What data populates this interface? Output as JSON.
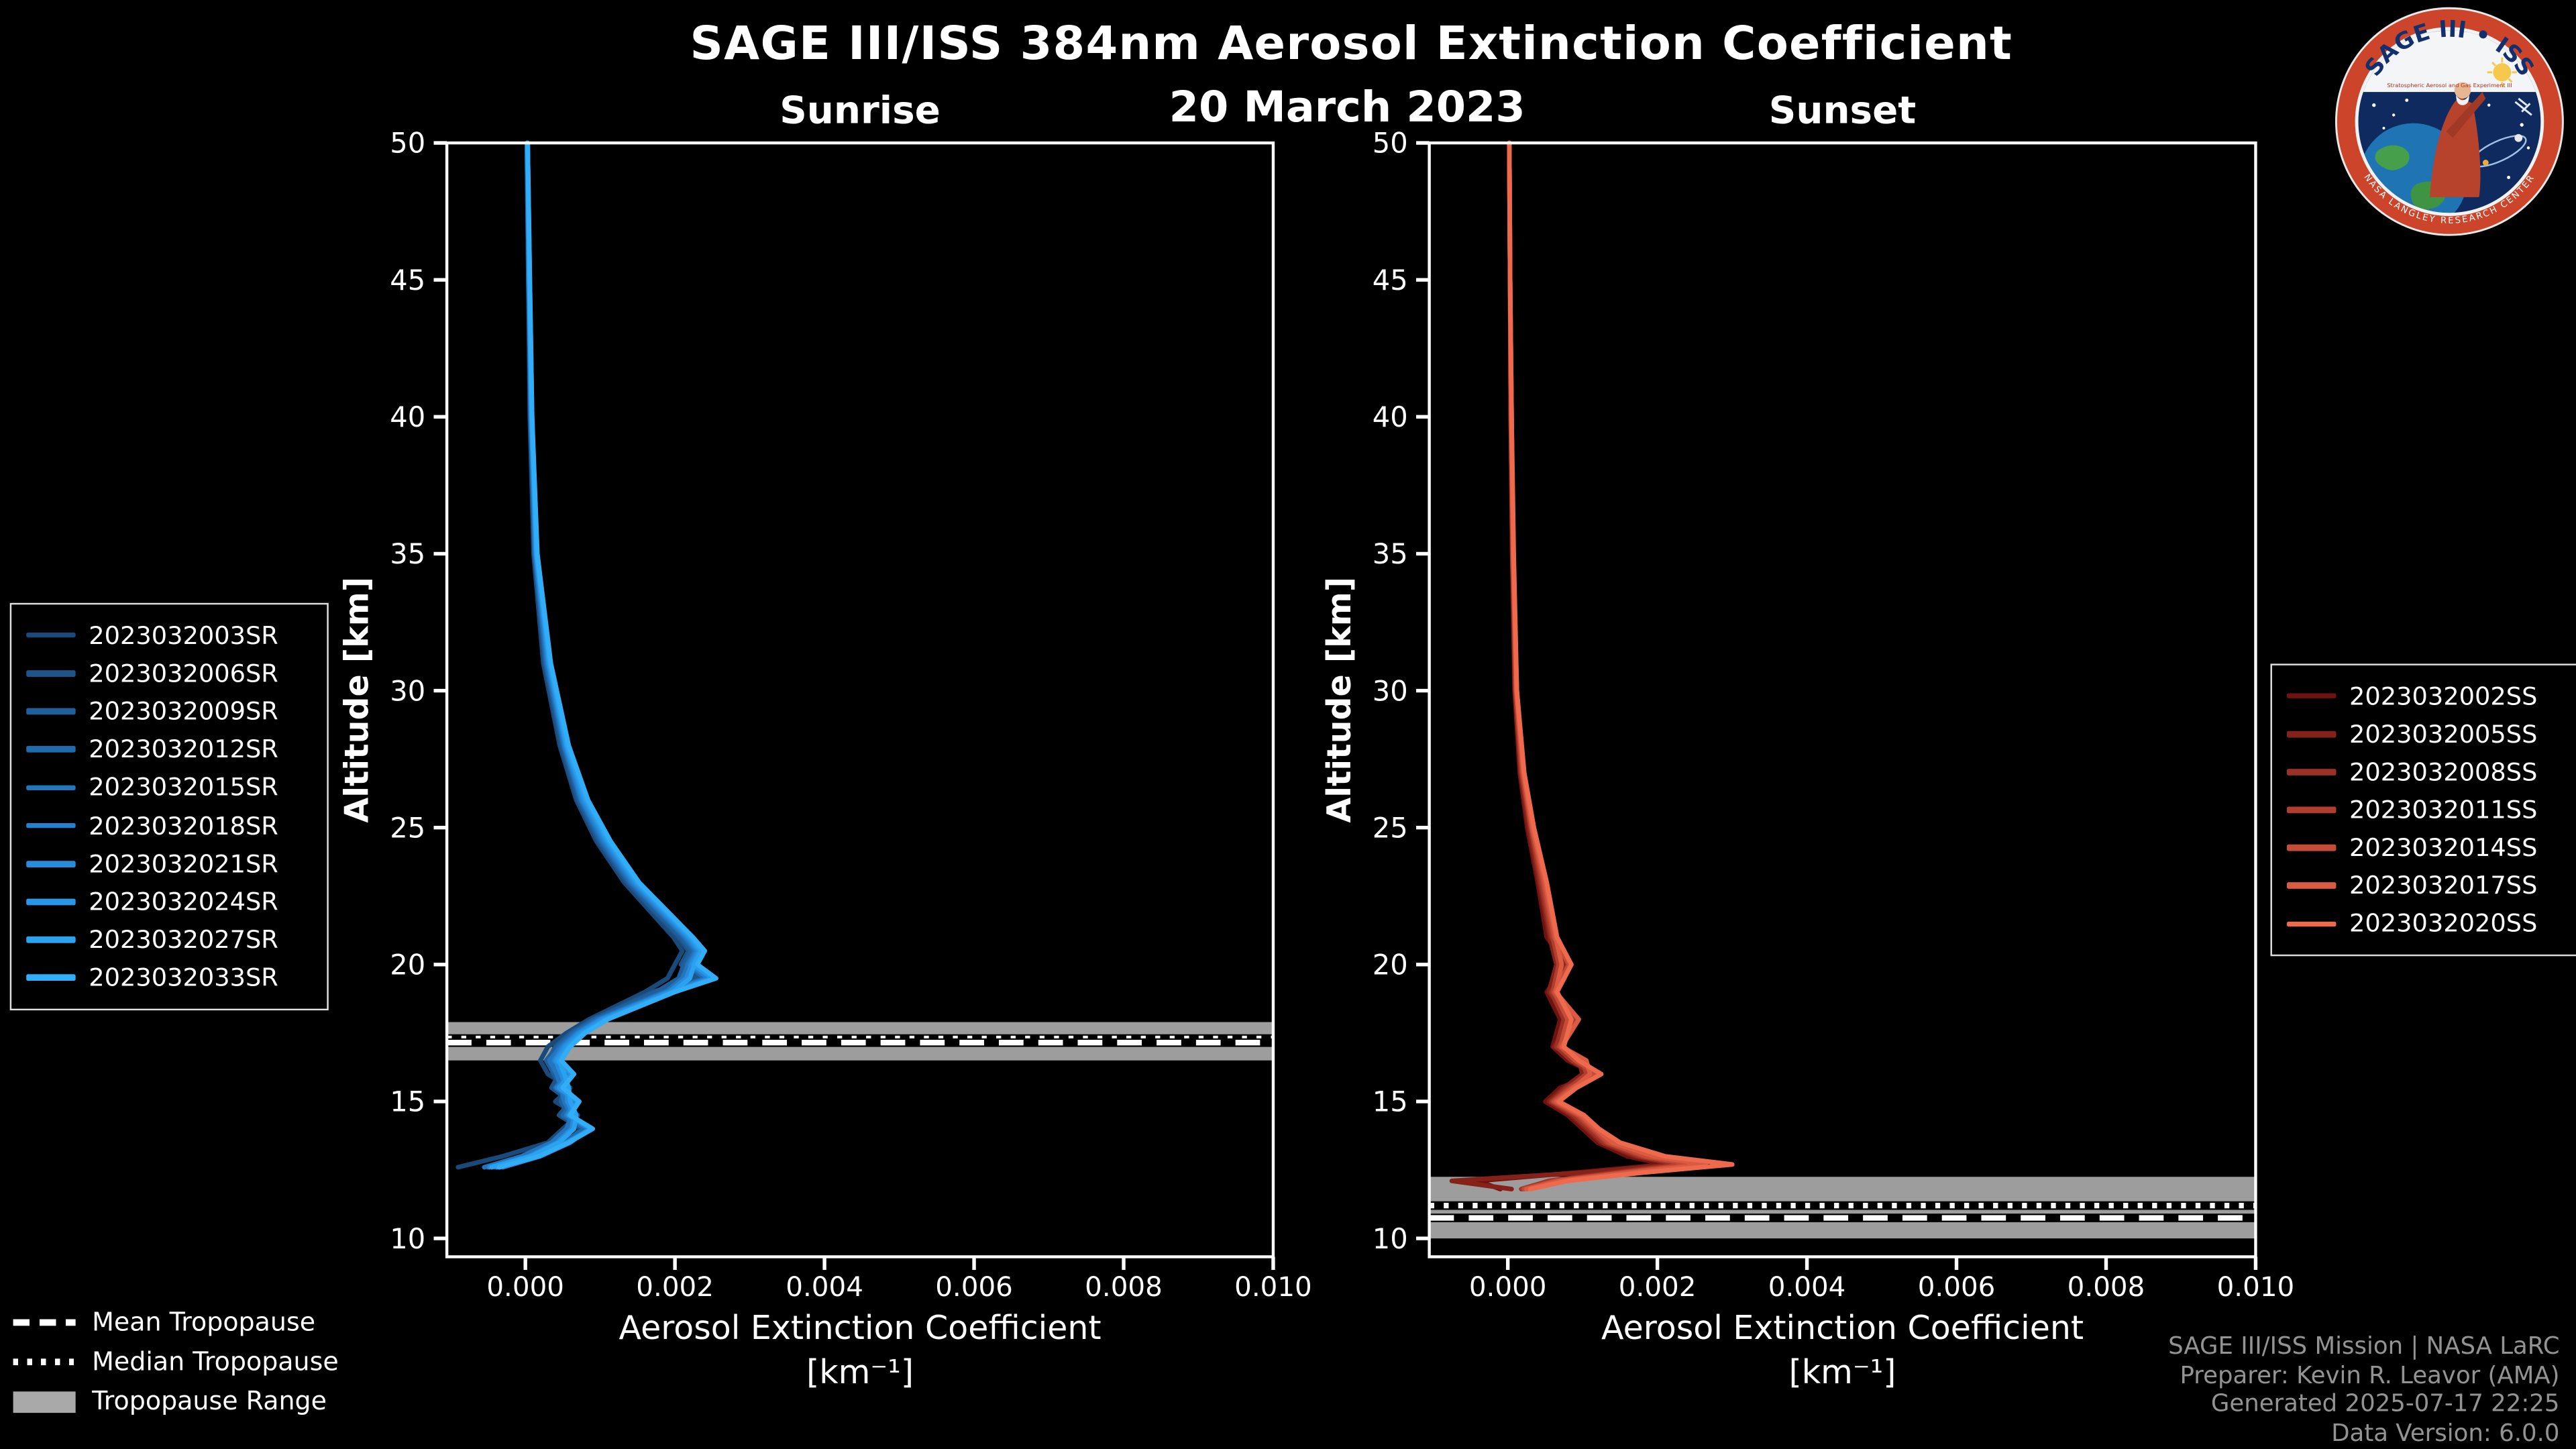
{
  "title": "SAGE III/ISS 384nm Aerosol Extinction Coefficient",
  "date": "20 March 2023",
  "colors": {
    "background": "#000000",
    "text": "#ffffff",
    "muted_text": "#939393",
    "frame": "#ffffff",
    "tropopause_band": "#b9b9b9",
    "sunrise_accent": "#31aef7",
    "sunset_accent": "#ef6a4c"
  },
  "logo": {
    "title": "SAGE III • ISS",
    "subtitle": "Stratospheric Aerosol and Gas Experiment III",
    "ring_text": "NASA LANGLEY RESEARCH CENTER"
  },
  "tropopause_legend": [
    {
      "style": "dashed",
      "label": "Mean Tropopause"
    },
    {
      "style": "dotted",
      "label": "Median Tropopause"
    },
    {
      "style": "band",
      "label": "Tropopause Range"
    }
  ],
  "credits": [
    "SAGE III/ISS Mission | NASA LaRC",
    "Preparer: Kevin R. Leavor (AMA)",
    "Generated 2025-07-17 22:25",
    "Data Version: 6.0.0"
  ],
  "chart_data": [
    {
      "type": "line",
      "title": "Sunrise",
      "xlabel": "Aerosol Extinction Coefficient",
      "xlabel_units": "[km⁻¹]",
      "ylabel": "Altitude [km]",
      "xlim": [
        -0.00105,
        0.01
      ],
      "ylim": [
        9.33,
        50
      ],
      "x_tick_values": [
        0,
        0.002,
        0.004,
        0.006,
        0.008,
        0.01
      ],
      "x_ticks": [
        "0.000",
        "0.002",
        "0.004",
        "0.006",
        "0.008",
        "0.010"
      ],
      "y_tick_values": [
        10,
        15,
        20,
        25,
        30,
        35,
        40,
        45,
        50
      ],
      "y_ticks": [
        "10",
        "15",
        "20",
        "25",
        "30",
        "35",
        "40",
        "45",
        "50"
      ],
      "grid": false,
      "legend_position": "outside-left",
      "tropopause": {
        "mean": 17.15,
        "median": 17.3,
        "range": [
          16.5,
          17.9
        ]
      },
      "altitudes": [
        50,
        45,
        40,
        35,
        31,
        28,
        26,
        24.5,
        23,
        22,
        21,
        20.5,
        20,
        19.5,
        19,
        18,
        17.5,
        17,
        16.5,
        16,
        15.5,
        15,
        14.5,
        14,
        13.5,
        13,
        12.6
      ],
      "series": [
        {
          "name": "2023032003SR",
          "color": "#1a4a7a",
          "values": [
            2e-05,
            4e-05,
            6e-05,
            0.00011,
            0.00024,
            0.00046,
            0.00068,
            0.00095,
            0.00132,
            0.00165,
            0.00198,
            0.0021,
            0.002,
            0.0019,
            0.0016,
            0.00085,
            0.00055,
            0.0003,
            0.0002,
            0.0003,
            0.0006,
            0.0004,
            0.0007,
            0.0005,
            0.0003,
            -0.0003,
            -0.0009
          ]
        },
        {
          "name": "2023032006SR",
          "color": "#1d558b",
          "values": [
            2e-05,
            4e-05,
            7e-05,
            0.00012,
            0.00026,
            0.00048,
            0.0007,
            0.00098,
            0.00136,
            0.0017,
            0.00205,
            0.00218,
            0.00208,
            0.0023,
            0.0017,
            0.0009,
            0.0006,
            0.0004,
            0.0003,
            0.00045,
            0.00035,
            0.0006,
            0.00045,
            0.00075,
            0.00055,
            0.00015,
            -0.00035
          ]
        },
        {
          "name": "2023032009SR",
          "color": "#1f609c",
          "values": [
            2e-05,
            4e-05,
            7e-05,
            0.00012,
            0.00027,
            0.0005,
            0.00072,
            0.001,
            0.00138,
            0.00172,
            0.00208,
            0.00222,
            0.00212,
            0.00205,
            0.00175,
            0.00092,
            0.00062,
            0.00042,
            0.00028,
            0.00038,
            0.00052,
            0.00048,
            0.00058,
            0.0006,
            0.0004,
            0.0,
            -0.0005
          ]
        },
        {
          "name": "2023032012SR",
          "color": "#216bad",
          "values": [
            2e-05,
            5e-05,
            7e-05,
            0.00013,
            0.00028,
            0.00051,
            0.00074,
            0.00102,
            0.0014,
            0.00176,
            0.00212,
            0.00226,
            0.00216,
            0.0024,
            0.00185,
            0.00095,
            0.00065,
            0.00045,
            0.00035,
            0.00055,
            0.0004,
            0.00065,
            0.0005,
            0.0008,
            0.0005,
            0.0001,
            -0.0004
          ]
        },
        {
          "name": "2023032015SR",
          "color": "#2376be",
          "values": [
            2e-05,
            5e-05,
            8e-05,
            0.00013,
            0.00029,
            0.00052,
            0.00075,
            0.00104,
            0.00142,
            0.00178,
            0.00214,
            0.00228,
            0.00218,
            0.0021,
            0.00188,
            0.00098,
            0.00068,
            0.00048,
            0.00032,
            0.00042,
            0.00048,
            0.00052,
            0.00062,
            0.00055,
            0.00035,
            -5e-05,
            -0.00055
          ]
        },
        {
          "name": "2023032018SR",
          "color": "#2581cf",
          "values": [
            3e-05,
            5e-05,
            8e-05,
            0.00014,
            0.0003,
            0.00053,
            0.00076,
            0.00106,
            0.00144,
            0.0018,
            0.00216,
            0.0023,
            0.0022,
            0.00245,
            0.0019,
            0.001,
            0.0007,
            0.0005,
            0.00038,
            0.0006,
            0.00042,
            0.00068,
            0.00055,
            0.00085,
            0.0006,
            0.0002,
            -0.0003
          ]
        },
        {
          "name": "2023032021SR",
          "color": "#278cdb",
          "values": [
            3e-05,
            5e-05,
            8e-05,
            0.00014,
            0.00031,
            0.00054,
            0.00078,
            0.00108,
            0.00146,
            0.00182,
            0.00218,
            0.00232,
            0.00222,
            0.00215,
            0.00192,
            0.00102,
            0.00072,
            0.00052,
            0.0004,
            0.00048,
            0.00055,
            0.00056,
            0.00065,
            0.00062,
            0.00042,
            5e-05,
            -0.00048
          ]
        },
        {
          "name": "2023032024SR",
          "color": "#2997e7",
          "values": [
            3e-05,
            5e-05,
            8e-05,
            0.00015,
            0.00032,
            0.00055,
            0.0008,
            0.0011,
            0.00148,
            0.00184,
            0.0022,
            0.00234,
            0.00224,
            0.0025,
            0.00195,
            0.00105,
            0.00075,
            0.00055,
            0.00042,
            0.00062,
            0.00045,
            0.0007,
            0.00058,
            0.00088,
            0.00055,
            0.00015,
            -0.00038
          ]
        },
        {
          "name": "2023032027SR",
          "color": "#2ba2f0",
          "values": [
            3e-05,
            6e-05,
            9e-05,
            0.00015,
            0.00033,
            0.00056,
            0.00082,
            0.00112,
            0.0015,
            0.00186,
            0.00222,
            0.00236,
            0.00226,
            0.0022,
            0.00198,
            0.00108,
            0.00078,
            0.00058,
            0.00045,
            0.00052,
            0.00058,
            0.0006,
            0.00068,
            0.00065,
            0.00045,
            8e-05,
            -0.00045
          ]
        },
        {
          "name": "2023032033SR",
          "color": "#31aef7",
          "values": [
            3e-05,
            6e-05,
            9e-05,
            0.00016,
            0.00034,
            0.00058,
            0.00084,
            0.00114,
            0.00152,
            0.00188,
            0.00224,
            0.0024,
            0.0023,
            0.00255,
            0.002,
            0.0011,
            0.0008,
            0.0006,
            0.00048,
            0.00065,
            0.0005,
            0.00072,
            0.0006,
            0.0009,
            0.00058,
            0.00018,
            -0.00035
          ]
        }
      ]
    },
    {
      "type": "line",
      "title": "Sunset",
      "xlabel": "Aerosol Extinction Coefficient",
      "xlabel_units": "[km⁻¹]",
      "ylabel": "Altitude [km]",
      "xlim": [
        -0.00105,
        0.01
      ],
      "ylim": [
        9.33,
        50
      ],
      "x_tick_values": [
        0,
        0.002,
        0.004,
        0.006,
        0.008,
        0.01
      ],
      "x_ticks": [
        "0.000",
        "0.002",
        "0.004",
        "0.006",
        "0.008",
        "0.010"
      ],
      "y_tick_values": [
        10,
        15,
        20,
        25,
        30,
        35,
        40,
        45,
        50
      ],
      "y_ticks": [
        "10",
        "15",
        "20",
        "25",
        "30",
        "35",
        "40",
        "45",
        "50"
      ],
      "grid": false,
      "legend_position": "outside-right",
      "tropopause": {
        "mean": 10.75,
        "median": 11.2,
        "range": [
          10.0,
          12.25
        ]
      },
      "altitudes": [
        50,
        45,
        40,
        35,
        30,
        27,
        25,
        23,
        21,
        20,
        19,
        18,
        17,
        16.5,
        16,
        15.5,
        15,
        14.5,
        14,
        13.5,
        13,
        12.7,
        12.4,
        12.1,
        11.8
      ],
      "series": [
        {
          "name": "2023032002SS",
          "color": "#701210",
          "values": [
            2e-05,
            3e-05,
            4e-05,
            6e-05,
            9e-05,
            0.00016,
            0.00026,
            0.0004,
            0.00052,
            0.00078,
            0.00052,
            0.0007,
            0.0006,
            0.0008,
            0.00118,
            0.0007,
            0.0005,
            0.0008,
            0.001,
            0.0012,
            0.0016,
            0.0021,
            0.0009,
            -0.0004,
            -0.0001
          ]
        },
        {
          "name": "2023032005SS",
          "color": "#86211a",
          "values": [
            2e-05,
            3e-05,
            4e-05,
            6e-05,
            0.0001,
            0.00017,
            0.00028,
            0.00042,
            0.00056,
            0.00065,
            0.00055,
            0.00085,
            0.00062,
            0.00095,
            0.001,
            0.00075,
            0.00055,
            0.00085,
            0.00105,
            0.00125,
            0.0017,
            0.00225,
            0.001,
            -0.00075,
            5e-05
          ]
        },
        {
          "name": "2023032008SS",
          "color": "#9b3024",
          "values": [
            2e-05,
            3e-05,
            4e-05,
            6e-05,
            0.0001,
            0.00018,
            0.0003,
            0.00044,
            0.00058,
            0.0008,
            0.00058,
            0.00075,
            0.00065,
            0.00085,
            0.00115,
            0.00078,
            0.00058,
            0.00088,
            0.00108,
            0.00128,
            0.00175,
            0.0023,
            0.0014,
            0.00055,
            0.00018
          ]
        },
        {
          "name": "2023032011SS",
          "color": "#b03e2e",
          "values": [
            2e-05,
            3e-05,
            4e-05,
            7e-05,
            0.00011,
            0.00019,
            0.00031,
            0.00046,
            0.0006,
            0.00068,
            0.0006,
            0.0009,
            0.00068,
            0.001,
            0.00105,
            0.00082,
            0.0006,
            0.00092,
            0.00112,
            0.00132,
            0.0018,
            0.0024,
            0.0015,
            0.0006,
            0.0002
          ]
        },
        {
          "name": "2023032014SS",
          "color": "#c54d38",
          "values": [
            2e-05,
            3e-05,
            5e-05,
            7e-05,
            0.00011,
            0.0002,
            0.00032,
            0.00048,
            0.00062,
            0.00082,
            0.00062,
            0.0008,
            0.0007,
            0.0009,
            0.0012,
            0.00085,
            0.00062,
            0.00095,
            0.00115,
            0.00135,
            0.00185,
            0.0025,
            0.00155,
            0.00065,
            0.00022
          ]
        },
        {
          "name": "2023032017SS",
          "color": "#da5b42",
          "values": [
            2e-05,
            3e-05,
            5e-05,
            7e-05,
            0.00012,
            0.00021,
            0.00033,
            0.0005,
            0.00064,
            0.00072,
            0.00064,
            0.00095,
            0.00072,
            0.00105,
            0.0011,
            0.00088,
            0.00065,
            0.00098,
            0.00118,
            0.0014,
            0.00195,
            0.00265,
            0.00165,
            0.0007,
            0.00025
          ]
        },
        {
          "name": "2023032020SS",
          "color": "#ef6a4c",
          "values": [
            2e-05,
            3e-05,
            5e-05,
            8e-05,
            0.00012,
            0.00022,
            0.00035,
            0.00052,
            0.00066,
            0.00085,
            0.00066,
            0.00085,
            0.00075,
            0.00095,
            0.00125,
            0.00092,
            0.00068,
            0.00102,
            0.00122,
            0.0015,
            0.0021,
            0.003,
            0.0018,
            0.0008,
            0.0003
          ]
        }
      ]
    }
  ]
}
